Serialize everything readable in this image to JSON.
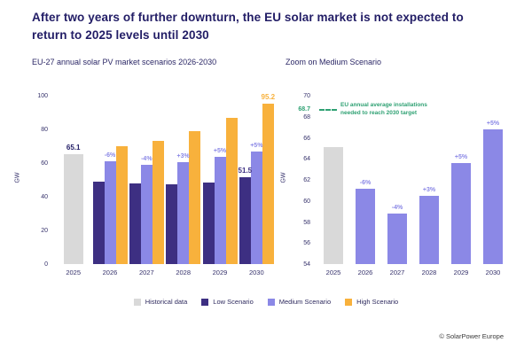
{
  "header": {
    "title_line1": "After two years of further downturn, the EU solar market is not expected to",
    "title_line2": "return to 2025 levels until 2030"
  },
  "colors": {
    "navy": "#221d66",
    "historical": "#d9d9d9",
    "low": "#3d2f82",
    "medium": "#8b88e6",
    "high": "#f8b13c",
    "green": "#2fa173"
  },
  "legend": [
    {
      "label": "Historical data",
      "color": "#d9d9d9"
    },
    {
      "label": "Low Scenario",
      "color": "#3d2f82"
    },
    {
      "label": "Medium Scenario",
      "color": "#8b88e6"
    },
    {
      "label": "High Scenario",
      "color": "#f8b13c"
    }
  ],
  "chart_data": [
    {
      "type": "bar",
      "title": "EU-27 annual solar PV market scenarios 2026-2030",
      "ylabel": "GW",
      "ylim": [
        0,
        100
      ],
      "yticks": [
        0,
        20,
        40,
        60,
        80,
        100
      ],
      "grid": false,
      "legend_position": "bottom",
      "categories": [
        "2025",
        "2026",
        "2027",
        "2028",
        "2029",
        "2030"
      ],
      "series": [
        {
          "name": "Historical data",
          "color": "#d9d9d9",
          "values": [
            65.1,
            null,
            null,
            null,
            null,
            null
          ]
        },
        {
          "name": "Low Scenario",
          "color": "#3d2f82",
          "values": [
            null,
            49,
            48,
            47.5,
            48.5,
            51.5
          ]
        },
        {
          "name": "Medium Scenario",
          "color": "#8b88e6",
          "values": [
            null,
            61.2,
            58.8,
            60.5,
            63.6,
            66.8
          ]
        },
        {
          "name": "High Scenario",
          "color": "#f8b13c",
          "values": [
            null,
            70,
            73,
            79,
            87,
            95.2
          ]
        }
      ],
      "pct_labels": [
        {
          "cat": 1,
          "series": 2,
          "text": "-6%"
        },
        {
          "cat": 2,
          "series": 2,
          "text": "-4%"
        },
        {
          "cat": 3,
          "series": 2,
          "text": "+3%"
        },
        {
          "cat": 4,
          "series": 2,
          "text": "+5%"
        },
        {
          "cat": 5,
          "series": 2,
          "text": "+5%"
        }
      ],
      "value_labels": [
        {
          "cat": 0,
          "series": 0,
          "text": "65.1",
          "color": "#221d66"
        },
        {
          "cat": 5,
          "series": 3,
          "text": "95.2",
          "color": "#f8b13c"
        },
        {
          "cat": 5,
          "series": 1,
          "text": "51.5",
          "color": "#3d2f82"
        }
      ]
    },
    {
      "type": "bar",
      "title": "Zoom on Medium Scenario",
      "ylabel": "GW",
      "ylim": [
        54,
        70
      ],
      "yticks": [
        54,
        56,
        58,
        60,
        62,
        64,
        66,
        68,
        70
      ],
      "grid": false,
      "categories": [
        "2025",
        "2026",
        "2027",
        "2028",
        "2029",
        "2030"
      ],
      "series": [
        {
          "name": "Historical data",
          "color": "#d9d9d9",
          "values": [
            65.1,
            null,
            null,
            null,
            null,
            null
          ]
        },
        {
          "name": "Medium Scenario",
          "color": "#8b88e6",
          "values": [
            null,
            61.2,
            58.8,
            60.5,
            63.6,
            66.8
          ]
        }
      ],
      "pct_labels": [
        {
          "cat": 1,
          "series": 1,
          "text": "-6%"
        },
        {
          "cat": 2,
          "series": 1,
          "text": "-4%"
        },
        {
          "cat": 3,
          "series": 1,
          "text": "+3%"
        },
        {
          "cat": 4,
          "series": 1,
          "text": "+5%"
        },
        {
          "cat": 5,
          "series": 1,
          "text": "+5%"
        }
      ],
      "target_line": {
        "value": 68.7,
        "label": "EU annual average installations needed to reach 2030 target"
      }
    }
  ],
  "footer": {
    "credit": "© SolarPower Europe"
  }
}
